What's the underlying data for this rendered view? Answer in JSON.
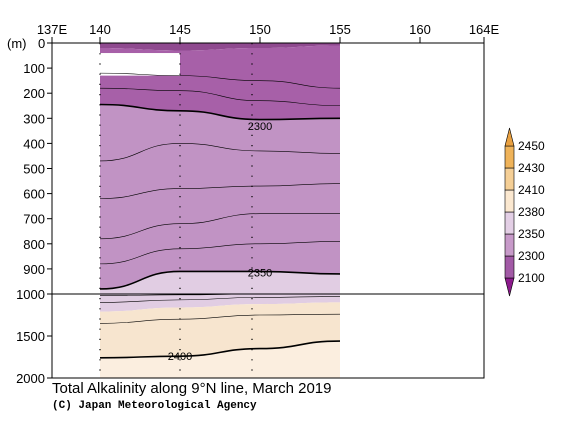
{
  "chart_data": {
    "type": "heatmap",
    "title": "Total Alkalinity along 9°N line, March 2019",
    "credit": "(C) Japan Meteorological Agency",
    "x_unit_label": "",
    "y_unit_label": "(m)",
    "x_ticks": [
      {
        "value": 137,
        "label": "137E"
      },
      {
        "value": 140,
        "label": "140"
      },
      {
        "value": 145,
        "label": "145"
      },
      {
        "value": 150,
        "label": "150"
      },
      {
        "value": 155,
        "label": "155"
      },
      {
        "value": 160,
        "label": "160"
      },
      {
        "value": 164,
        "label": "164E"
      }
    ],
    "xlim": [
      137,
      164
    ],
    "y_ticks_upper": [
      0,
      100,
      200,
      300,
      400,
      500,
      600,
      700,
      800,
      900,
      1000
    ],
    "y_ticks_lower": [
      1500,
      2000
    ],
    "ylim_upper": [
      0,
      1000
    ],
    "ylim_lower": [
      1000,
      2000
    ],
    "data_xlim": [
      140,
      155
    ],
    "stations": [
      140,
      145,
      149.5
    ],
    "contour_labels": [
      {
        "text": "2300",
        "x": 150,
        "depth": 330
      },
      {
        "text": "2350",
        "x": 150,
        "depth": 915
      },
      {
        "text": "2400",
        "x": 145,
        "depth": 1740
      }
    ],
    "bands": [
      {
        "name": "lt2100",
        "color": "#8f4a8f",
        "top": [
          0,
          0,
          0,
          0
        ],
        "bottom": [
          20,
          30,
          20,
          10
        ]
      },
      {
        "name": "2100_2300",
        "color": "#a760a8",
        "top": [
          20,
          30,
          20,
          10
        ],
        "bottom": [
          245,
          270,
          305,
          300
        ]
      },
      {
        "name": "2300_2350",
        "color": "#c193c4",
        "top": [
          245,
          270,
          305,
          300
        ],
        "bottom": [
          980,
          910,
          910,
          920
        ]
      },
      {
        "name": "2350_2380",
        "color": "#e1cde3",
        "top": [
          980,
          910,
          910,
          920
        ],
        "bottom": [
          1210,
          1160,
          1120,
          1100
        ]
      },
      {
        "name": "2380_2400",
        "color": "#f7e5cf",
        "top": [
          1210,
          1160,
          1120,
          1100
        ],
        "bottom": [
          1760,
          1740,
          1650,
          1560
        ]
      },
      {
        "name": "2400_2410",
        "color": "#fbeedf",
        "top": [
          1760,
          1740,
          1650,
          1560
        ],
        "bottom": [
          2000,
          2000,
          2000,
          2000
        ]
      }
    ],
    "contour_lines": [
      {
        "heavy": true,
        "depths": [
          245,
          270,
          305,
          300
        ]
      },
      {
        "heavy": true,
        "depths": [
          980,
          910,
          910,
          920
        ]
      },
      {
        "heavy": true,
        "depths": [
          1760,
          1740,
          1650,
          1560
        ]
      },
      {
        "heavy": false,
        "depths": [
          120,
          130,
          150,
          180
        ]
      },
      {
        "heavy": false,
        "depths": [
          180,
          190,
          230,
          250
        ]
      },
      {
        "heavy": false,
        "depths": [
          470,
          400,
          430,
          440
        ]
      },
      {
        "heavy": false,
        "depths": [
          620,
          580,
          570,
          560
        ]
      },
      {
        "heavy": false,
        "depths": [
          780,
          720,
          680,
          680
        ]
      },
      {
        "heavy": false,
        "depths": [
          880,
          820,
          800,
          790
        ]
      },
      {
        "heavy": false,
        "depths": [
          1020,
          1010,
          1000,
          1000
        ]
      },
      {
        "heavy": false,
        "depths": [
          1100,
          1070,
          1040,
          1030
        ]
      },
      {
        "heavy": false,
        "depths": [
          1350,
          1300,
          1250,
          1240
        ]
      }
    ],
    "blank_region": {
      "x": [
        140,
        145
      ],
      "depth": [
        40,
        130
      ]
    },
    "colorbar": {
      "levels": [
        "2100",
        "2300",
        "2350",
        "2380",
        "2410",
        "2430",
        "2450"
      ],
      "colors": [
        "#8c1a8c",
        "#a25aa6",
        "#c79ac9",
        "#e3cfe5",
        "#fbe8d0",
        "#f5cf96",
        "#efb35a",
        "#e9a040"
      ]
    }
  }
}
